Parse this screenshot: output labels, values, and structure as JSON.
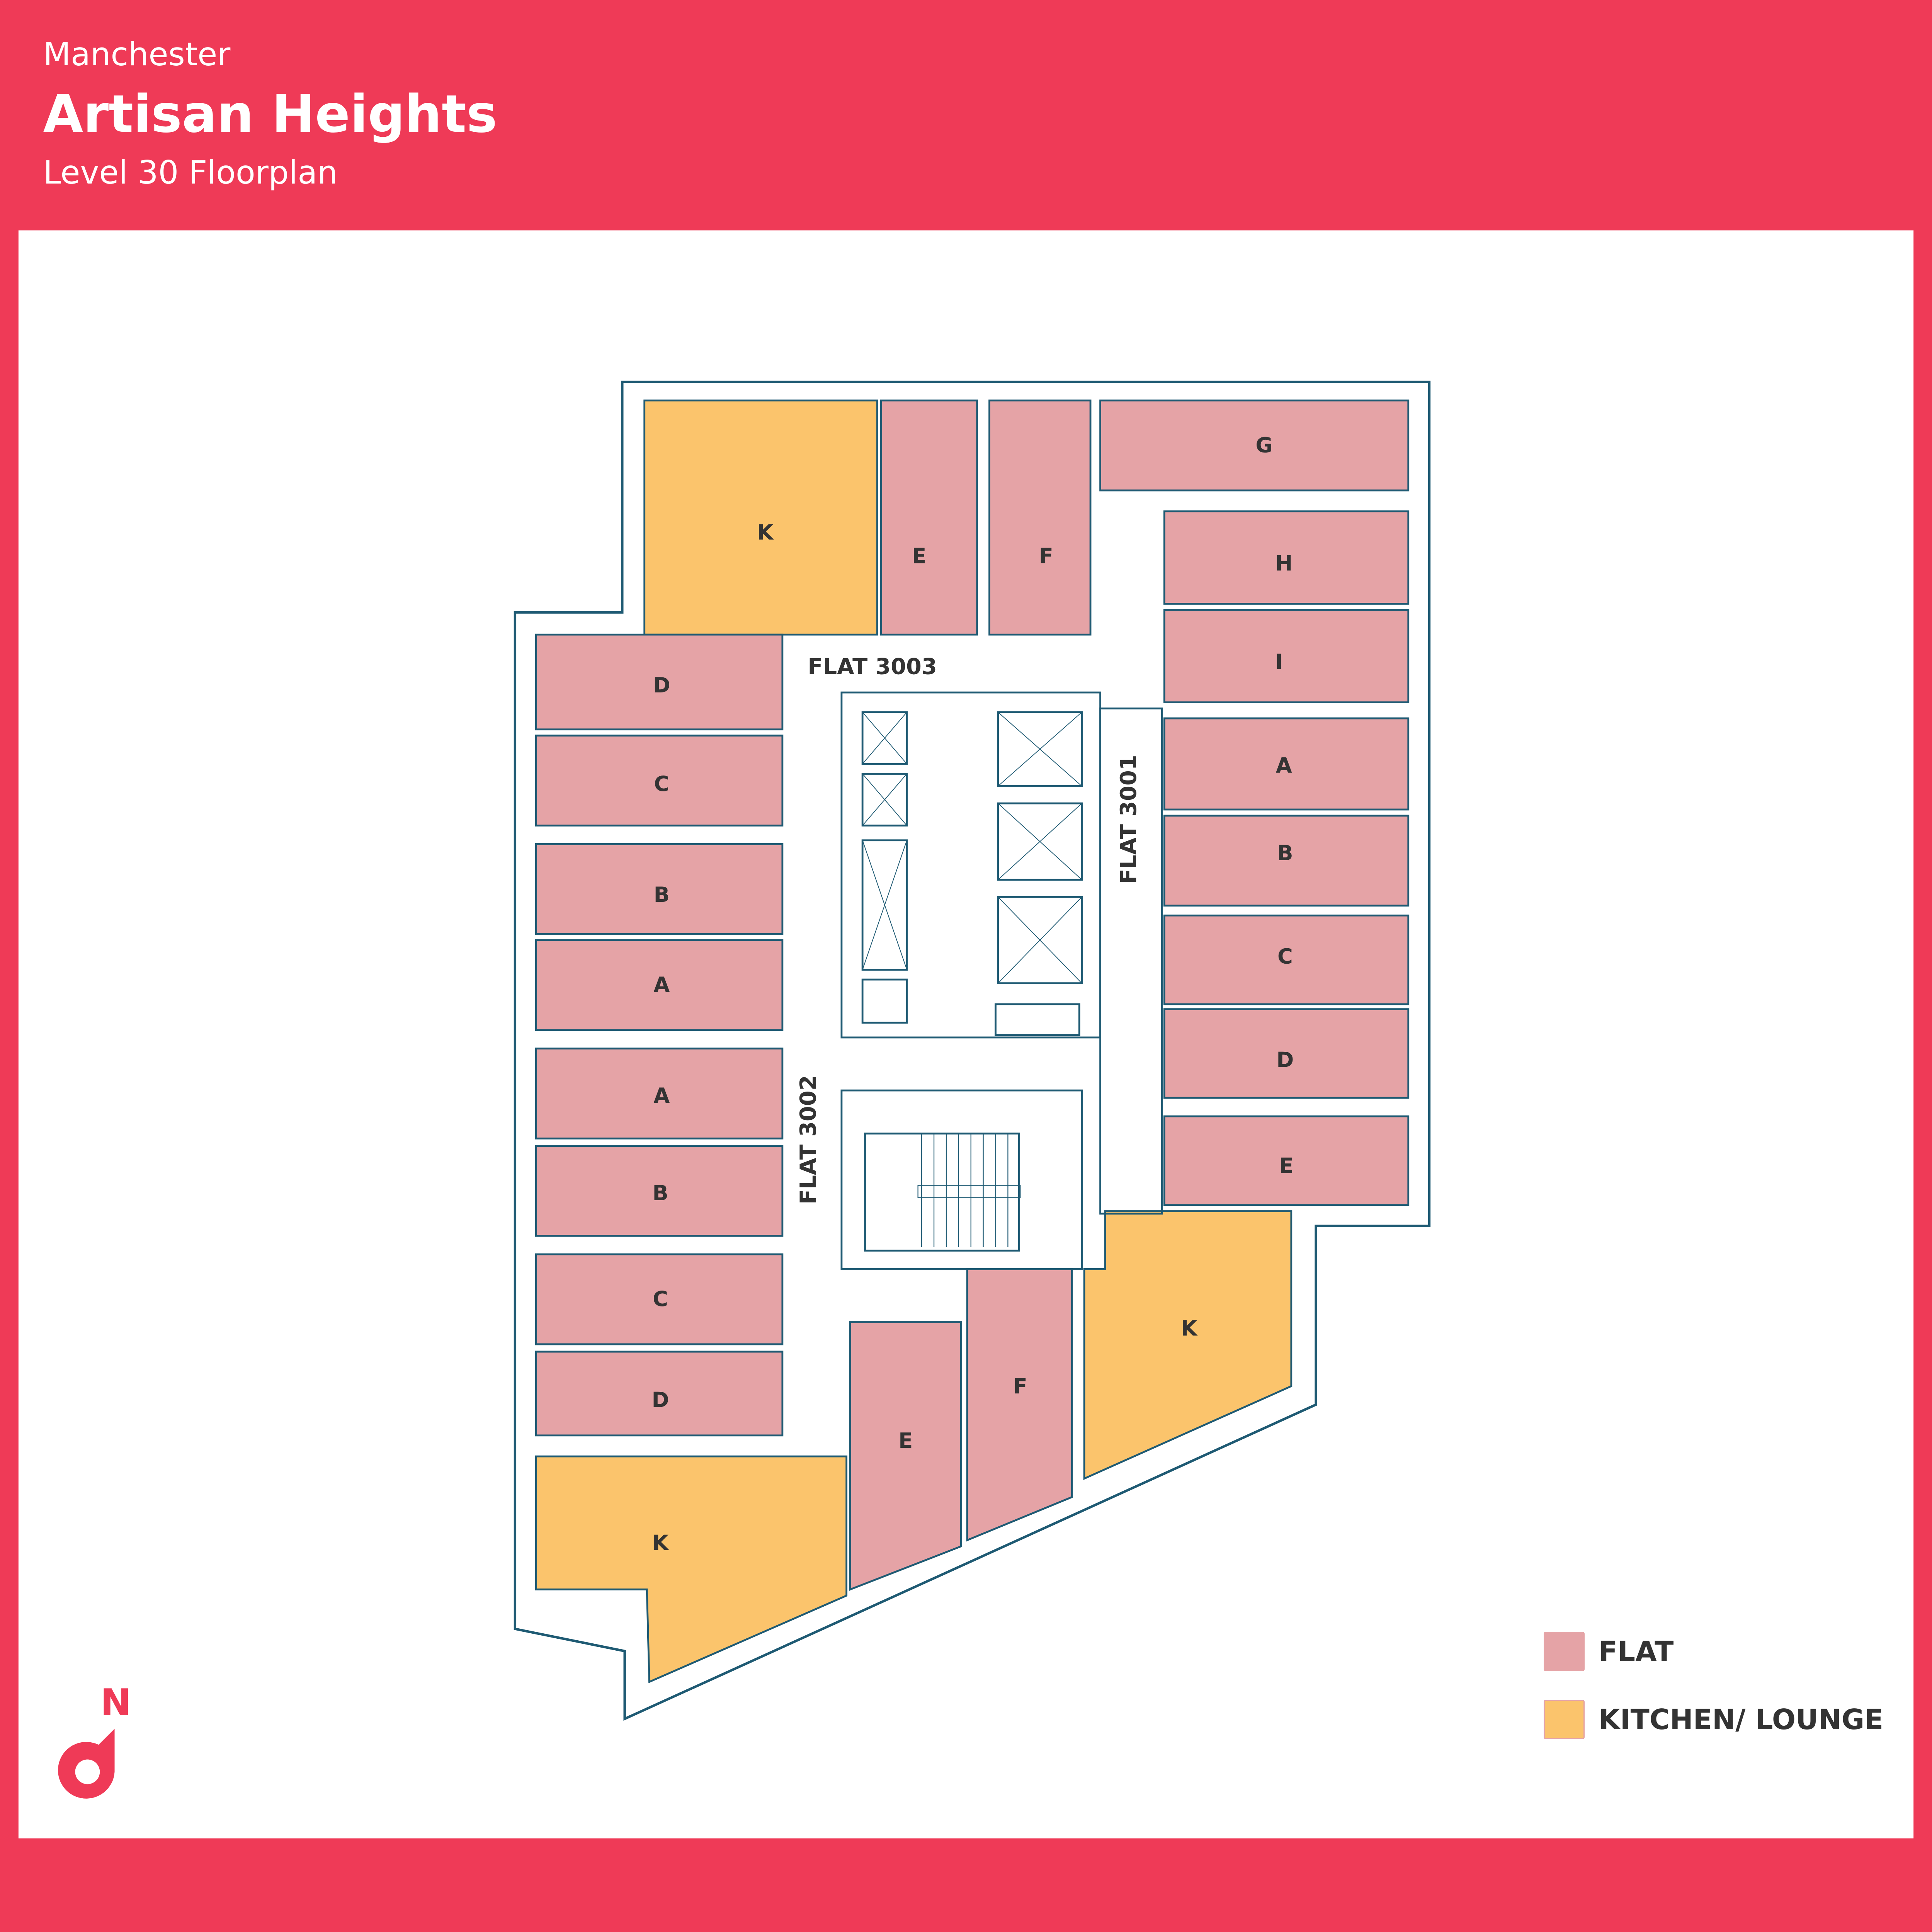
{
  "header": {
    "city": "Manchester",
    "building": "Artisan Heights",
    "subtitle": "Level 30 Floorplan"
  },
  "colors": {
    "brand": "#EF3A57",
    "flat": "#E5A3A6",
    "kitchen": "#FBC46C",
    "wall": "#1E5A73",
    "text": "#333333"
  },
  "flats": [
    {
      "name": "FLAT 3001"
    },
    {
      "name": "FLAT 3002"
    },
    {
      "name": "FLAT 3003"
    }
  ],
  "rooms": [
    {
      "label": "K",
      "type": "kitchen"
    },
    {
      "label": "E",
      "type": "flat"
    },
    {
      "label": "F",
      "type": "flat"
    },
    {
      "label": "G",
      "type": "flat"
    },
    {
      "label": "H",
      "type": "flat"
    },
    {
      "label": "I",
      "type": "flat"
    },
    {
      "label": "A",
      "type": "flat"
    },
    {
      "label": "B",
      "type": "flat"
    },
    {
      "label": "C",
      "type": "flat"
    },
    {
      "label": "D",
      "type": "flat"
    },
    {
      "label": "E",
      "type": "flat"
    },
    {
      "label": "K",
      "type": "kitchen"
    },
    {
      "label": "F",
      "type": "flat"
    },
    {
      "label": "E",
      "type": "flat"
    },
    {
      "label": "K",
      "type": "kitchen"
    },
    {
      "label": "D",
      "type": "flat"
    },
    {
      "label": "C",
      "type": "flat"
    },
    {
      "label": "B",
      "type": "flat"
    },
    {
      "label": "A",
      "type": "flat"
    },
    {
      "label": "A",
      "type": "flat"
    },
    {
      "label": "B",
      "type": "flat"
    },
    {
      "label": "C",
      "type": "flat"
    },
    {
      "label": "D",
      "type": "flat"
    }
  ],
  "legend": {
    "items": [
      {
        "label": "FLAT",
        "type": "flat"
      },
      {
        "label": "KITCHEN/ LOUNGE",
        "type": "kitchen"
      }
    ]
  },
  "compass": {
    "label": "N",
    "icon": "north-arrow-icon"
  }
}
